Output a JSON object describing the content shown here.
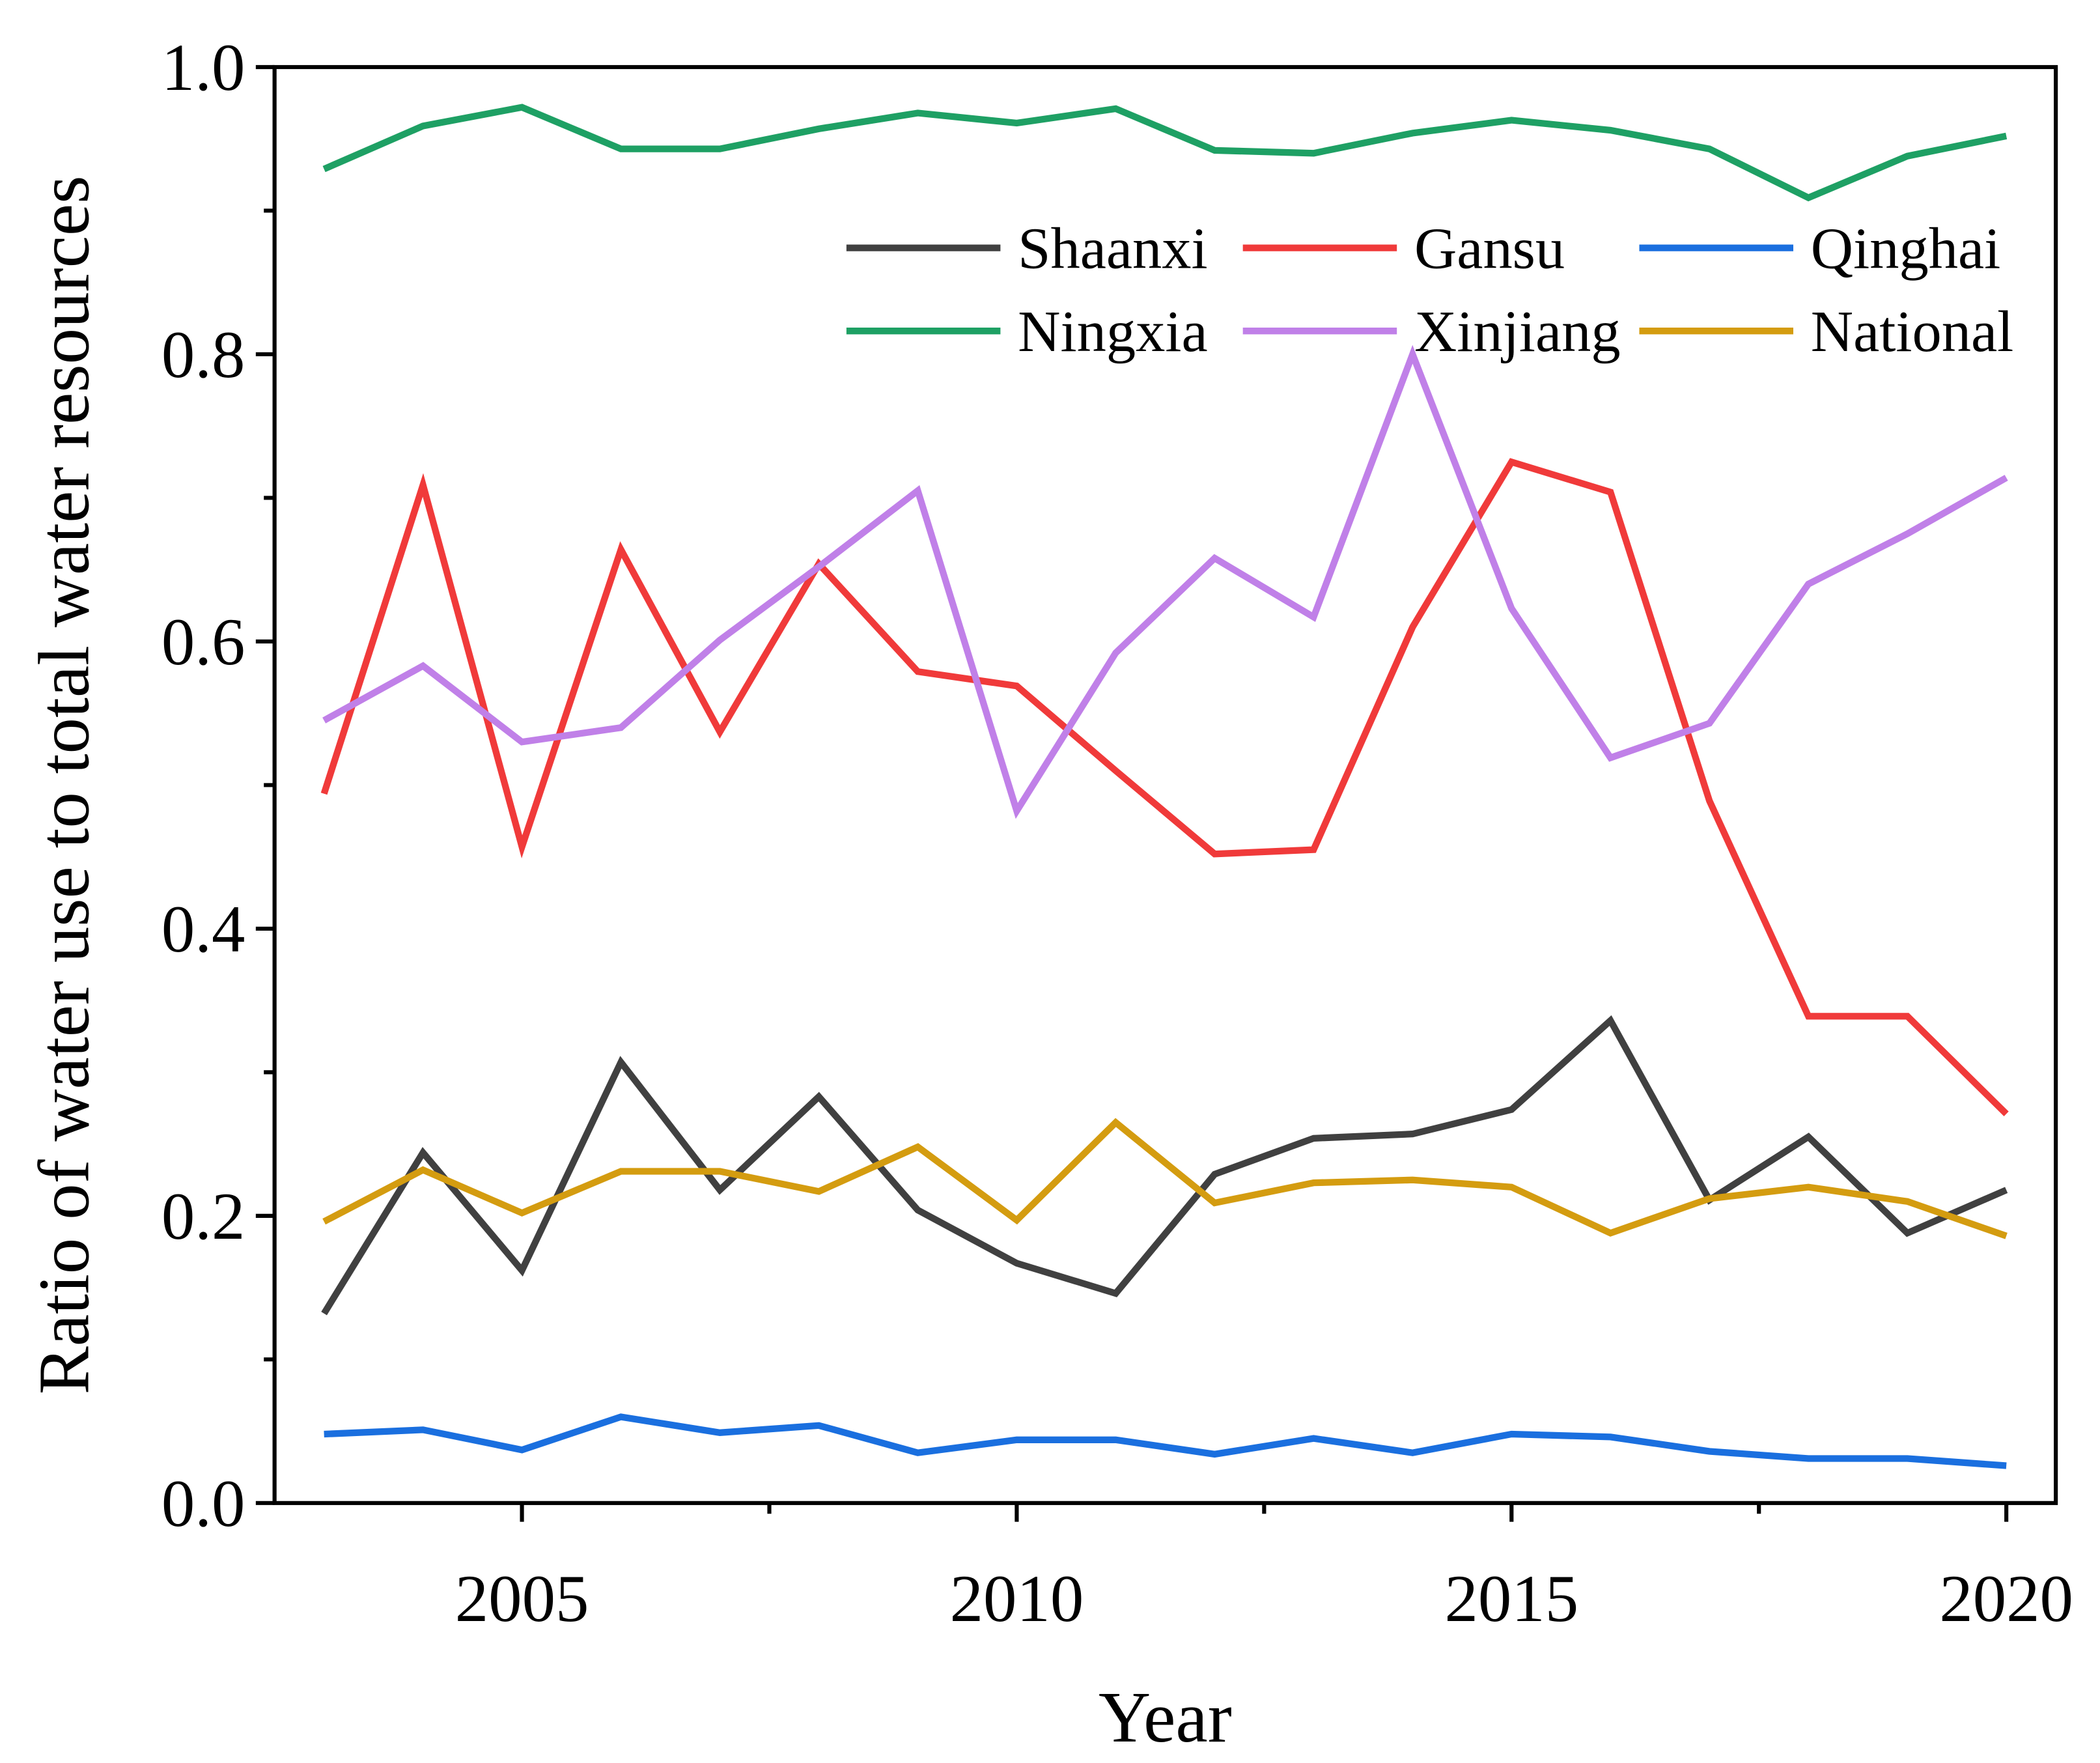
{
  "chart_data": {
    "type": "line",
    "x_label": "Year",
    "y_label": "Ratio of water use to total water resources",
    "x": [
      2003,
      2004,
      2005,
      2006,
      2007,
      2008,
      2009,
      2010,
      2011,
      2012,
      2013,
      2014,
      2015,
      2016,
      2017,
      2018,
      2019,
      2020
    ],
    "series": [
      {
        "name": "Shaanxi",
        "color": "#404040",
        "values": [
          0.132,
          0.244,
          0.162,
          0.307,
          0.218,
          0.283,
          0.204,
          0.167,
          0.146,
          0.229,
          0.254,
          0.257,
          0.274,
          0.336,
          0.211,
          0.255,
          0.188,
          0.218
        ]
      },
      {
        "name": "Gansu",
        "color": "#f03a3a",
        "values": [
          0.494,
          0.709,
          0.457,
          0.664,
          0.537,
          0.654,
          0.579,
          0.569,
          0.51,
          0.452,
          0.455,
          0.61,
          0.725,
          0.704,
          0.489,
          0.339,
          0.339,
          0.271
        ]
      },
      {
        "name": "Qinghai",
        "color": "#1a6fdf",
        "values": [
          0.048,
          0.051,
          0.037,
          0.06,
          0.049,
          0.054,
          0.035,
          0.044,
          0.044,
          0.034,
          0.045,
          0.035,
          0.048,
          0.046,
          0.036,
          0.031,
          0.031,
          0.026
        ]
      },
      {
        "name": "Ningxia",
        "color": "#1ea064",
        "values": [
          0.929,
          0.959,
          0.972,
          0.943,
          0.943,
          0.957,
          0.968,
          0.961,
          0.971,
          0.942,
          0.94,
          0.954,
          0.963,
          0.956,
          0.943,
          0.909,
          0.938,
          0.952
        ]
      },
      {
        "name": "Xinjiang",
        "color": "#c080e8",
        "values": [
          0.545,
          0.583,
          0.53,
          0.54,
          0.601,
          0.652,
          0.705,
          0.482,
          0.592,
          0.658,
          0.617,
          0.8,
          0.623,
          0.519,
          0.543,
          0.64,
          0.675,
          0.714
        ]
      },
      {
        "name": "National",
        "color": "#d49c10",
        "values": [
          0.196,
          0.232,
          0.202,
          0.231,
          0.231,
          0.217,
          0.248,
          0.197,
          0.265,
          0.209,
          0.223,
          0.225,
          0.22,
          0.188,
          0.212,
          0.22,
          0.21,
          0.186
        ]
      }
    ],
    "xlim": [
      2002.5,
      2020.5
    ],
    "xticks": [
      2005,
      2010,
      2015,
      2020
    ],
    "ylim": [
      0,
      1
    ],
    "yticks": [
      {
        "value": 0,
        "label": "0.0"
      },
      0.2,
      0.4,
      0.6,
      0.8,
      {
        "value": 1,
        "label": "1.0"
      }
    ],
    "legend_position": "upper right",
    "grid": false
  }
}
